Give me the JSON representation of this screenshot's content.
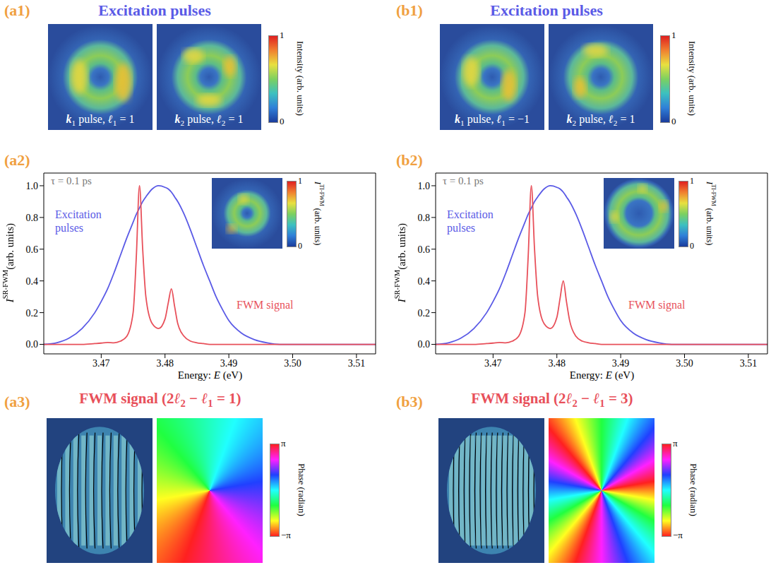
{
  "chart_data": [
    {
      "type": "line",
      "panel": "(a2)",
      "x": [
        3.461,
        3.463,
        3.465,
        3.467,
        3.469,
        3.47,
        3.471,
        3.472,
        3.473,
        3.474,
        3.475,
        3.4755,
        3.476,
        3.4765,
        3.477,
        3.478,
        3.479,
        3.48,
        3.4805,
        3.481,
        3.4815,
        3.482,
        3.483,
        3.484,
        3.485,
        3.486,
        3.487,
        3.488,
        3.489,
        3.49,
        3.492,
        3.494,
        3.496,
        3.498,
        3.5,
        3.505,
        3.51,
        3.513
      ],
      "series": [
        {
          "name": "Excitation pulses",
          "color": "#5a5ae6",
          "values": [
            0.0,
            0.01,
            0.04,
            0.1,
            0.2,
            0.27,
            0.35,
            0.45,
            0.56,
            0.67,
            0.77,
            0.82,
            0.86,
            0.9,
            0.93,
            0.98,
            1.0,
            0.99,
            0.98,
            0.96,
            0.93,
            0.9,
            0.82,
            0.72,
            0.61,
            0.5,
            0.4,
            0.3,
            0.22,
            0.15,
            0.07,
            0.03,
            0.01,
            0.0,
            0.0,
            0.0,
            0.0,
            0.0
          ]
        },
        {
          "name": "FWM signal",
          "color": "#e8505a",
          "values": [
            0,
            0,
            0,
            0,
            0.005,
            0.008,
            0.012,
            0.01,
            0.02,
            0.05,
            0.2,
            0.55,
            1.0,
            0.6,
            0.3,
            0.13,
            0.1,
            0.16,
            0.26,
            0.35,
            0.24,
            0.13,
            0.05,
            0.02,
            0.01,
            0.005,
            0,
            0,
            0,
            0,
            0,
            0,
            0,
            0,
            0,
            0,
            0,
            0
          ]
        }
      ],
      "xlim": [
        3.461,
        3.513
      ],
      "xticks": [
        3.47,
        3.48,
        3.49,
        {
          "value": 3.5,
          "label": "3.50"
        },
        3.51
      ],
      "ylim": [
        -0.06,
        1.08
      ],
      "yticks": [
        {
          "value": 0,
          "label": "0.0"
        },
        0.2,
        0.4,
        0.6,
        0.8,
        {
          "value": 1,
          "label": "1.0"
        }
      ],
      "x_label": [
        {
          "t": "Energy: "
        },
        {
          "t": "E",
          "i": true
        },
        {
          "t": " (eV)"
        }
      ],
      "y_label": [
        {
          "t": "I",
          "i": true
        },
        {
          "t": "SR-FWM",
          "sup": true
        },
        {
          "t": "(arb. units)"
        }
      ],
      "annotation": "τ = 0.1 ps",
      "inset_colorbar": {
        "label": [
          {
            "t": "I",
            "i": true
          },
          {
            "t": "TI-FWM",
            "sup": true
          },
          {
            "t": " (arb. units)"
          }
        ],
        "range": [
          0,
          1
        ],
        "ticks": [
          0,
          1
        ]
      }
    },
    {
      "type": "line",
      "panel": "(b2)",
      "x": [
        3.461,
        3.463,
        3.465,
        3.467,
        3.469,
        3.47,
        3.471,
        3.472,
        3.473,
        3.474,
        3.475,
        3.4755,
        3.476,
        3.4765,
        3.477,
        3.478,
        3.479,
        3.48,
        3.4805,
        3.481,
        3.4815,
        3.482,
        3.483,
        3.484,
        3.485,
        3.486,
        3.487,
        3.488,
        3.489,
        3.49,
        3.492,
        3.494,
        3.496,
        3.498,
        3.5,
        3.505,
        3.51,
        3.513
      ],
      "series": [
        {
          "name": "Excitation pulses",
          "color": "#5a5ae6",
          "values": [
            0.0,
            0.01,
            0.04,
            0.1,
            0.2,
            0.27,
            0.35,
            0.45,
            0.56,
            0.67,
            0.77,
            0.82,
            0.86,
            0.9,
            0.93,
            0.98,
            1.0,
            0.99,
            0.98,
            0.96,
            0.93,
            0.9,
            0.82,
            0.72,
            0.61,
            0.5,
            0.4,
            0.3,
            0.22,
            0.15,
            0.07,
            0.03,
            0.01,
            0.0,
            0.0,
            0.0,
            0.0,
            0.0
          ]
        },
        {
          "name": "FWM signal",
          "color": "#e8505a",
          "values": [
            0,
            0,
            0,
            0,
            0.005,
            0.008,
            0.012,
            0.01,
            0.02,
            0.05,
            0.2,
            0.55,
            1.0,
            0.6,
            0.3,
            0.13,
            0.1,
            0.17,
            0.29,
            0.4,
            0.27,
            0.15,
            0.05,
            0.02,
            0.01,
            0.005,
            0,
            0,
            0,
            0,
            0,
            0,
            0,
            0,
            0,
            0,
            0,
            0
          ]
        }
      ],
      "xlim": [
        3.461,
        3.513
      ],
      "xticks": [
        3.47,
        3.48,
        3.49,
        {
          "value": 3.5,
          "label": "3.50"
        },
        3.51
      ],
      "ylim": [
        -0.06,
        1.08
      ],
      "yticks": [
        {
          "value": 0,
          "label": "0.0"
        },
        0.2,
        0.4,
        0.6,
        0.8,
        {
          "value": 1,
          "label": "1.0"
        }
      ],
      "x_label": [
        {
          "t": "Energy: "
        },
        {
          "t": "E",
          "i": true
        },
        {
          "t": " (eV)"
        }
      ],
      "y_label": [
        {
          "t": "I",
          "i": true
        },
        {
          "t": "SR-FWM",
          "sup": true
        },
        {
          "t": "(arb. units)"
        }
      ],
      "annotation": "τ = 0.1 ps",
      "inset_colorbar": {
        "label": [
          {
            "t": "I",
            "i": true
          },
          {
            "t": "TI-FWM",
            "sup": true
          },
          {
            "t": " (arb. units)"
          }
        ],
        "range": [
          0,
          1
        ],
        "ticks": [
          0,
          1
        ]
      }
    }
  ],
  "panels": [
    {
      "letter_top": "(a1)",
      "title_top": "Excitation pulses",
      "pulses": [
        [
          {
            "t": "k",
            "b": true,
            "i": true
          },
          {
            "t": "1",
            "sub": true
          },
          {
            "t": " pulse, "
          },
          {
            "t": "ℓ",
            "b": true,
            "i": true
          },
          {
            "t": "1",
            "sub": true
          },
          {
            "t": " = 1"
          }
        ],
        [
          {
            "t": "k",
            "b": true,
            "i": true
          },
          {
            "t": "2",
            "sub": true
          },
          {
            "t": " pulse, "
          },
          {
            "t": "ℓ",
            "b": true,
            "i": true
          },
          {
            "t": "2",
            "sub": true
          },
          {
            "t": " = 1"
          }
        ]
      ],
      "intensity_colorbar": {
        "label": "Intensity (arb. units)",
        "range": [
          0,
          1
        ],
        "ticks": [
          0,
          1
        ]
      },
      "letter_bottom": "(a3)",
      "title_bottom": [
        {
          "t": "FWM signal (2"
        },
        {
          "t": "ℓ",
          "i": true
        },
        {
          "t": "2",
          "sub": true
        },
        {
          "t": " − "
        },
        {
          "t": "ℓ",
          "i": true
        },
        {
          "t": "1",
          "sub": true
        },
        {
          "t": " = 1)"
        }
      ],
      "vortex_charge": 1,
      "phase_colorbar": {
        "label": "Phase (radian)",
        "range": [
          -3.14159,
          3.14159
        ],
        "ticks": [
          {
            "value": 3.14159,
            "label": "π"
          },
          {
            "value": -3.14159,
            "label": "−π"
          }
        ]
      }
    },
    {
      "letter_top": "(b1)",
      "title_top": "Excitation pulses",
      "pulses": [
        [
          {
            "t": "k",
            "b": true,
            "i": true
          },
          {
            "t": "1",
            "sub": true
          },
          {
            "t": " pulse, "
          },
          {
            "t": "ℓ",
            "b": true,
            "i": true
          },
          {
            "t": "1",
            "sub": true
          },
          {
            "t": " = −1"
          }
        ],
        [
          {
            "t": "k",
            "b": true,
            "i": true
          },
          {
            "t": "2",
            "sub": true
          },
          {
            "t": " pulse, "
          },
          {
            "t": "ℓ",
            "b": true,
            "i": true
          },
          {
            "t": "2",
            "sub": true
          },
          {
            "t": " = 1"
          }
        ]
      ],
      "intensity_colorbar": {
        "label": "Intensity (arb. units)",
        "range": [
          0,
          1
        ],
        "ticks": [
          0,
          1
        ]
      },
      "letter_bottom": "(b3)",
      "title_bottom": [
        {
          "t": "FWM signal (2"
        },
        {
          "t": "ℓ",
          "i": true
        },
        {
          "t": "2",
          "sub": true
        },
        {
          "t": " − "
        },
        {
          "t": "ℓ",
          "i": true
        },
        {
          "t": "1",
          "sub": true
        },
        {
          "t": " = 3)"
        }
      ],
      "vortex_charge": 3,
      "phase_colorbar": {
        "label": "Phase (radian)",
        "range": [
          -3.14159,
          3.14159
        ],
        "ticks": [
          {
            "value": 3.14159,
            "label": "π"
          },
          {
            "value": -3.14159,
            "label": "−π"
          }
        ]
      }
    }
  ]
}
